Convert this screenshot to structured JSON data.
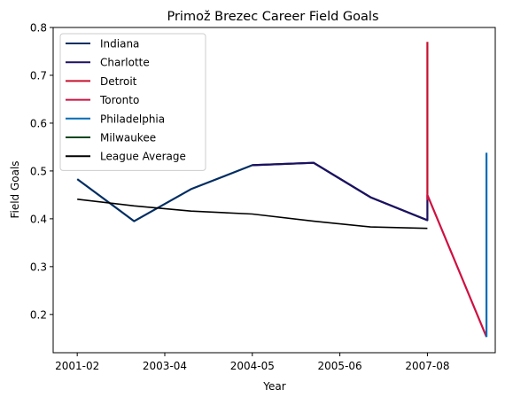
{
  "chart_data": {
    "type": "line",
    "title": "Primož Brezec Career Field Goals",
    "xlabel": "Year",
    "ylabel": "Field Goals",
    "x_ticks": [
      "2001-02",
      "2003-04",
      "2004-05",
      "2005-06",
      "2007-08"
    ],
    "x_tick_pos": [
      0,
      2,
      4,
      6,
      8
    ],
    "x_range": [
      -0.55,
      9.55
    ],
    "y_ticks": [
      "0.2",
      "0.3",
      "0.4",
      "0.5",
      "0.6",
      "0.7",
      "0.8"
    ],
    "y_tick_vals": [
      0.2,
      0.3,
      0.4,
      0.5,
      0.6,
      0.7,
      0.8
    ],
    "ylim": [
      0.12,
      0.8
    ],
    "grid": false,
    "legend_position": "top-left",
    "series": [
      {
        "name": "Indiana",
        "color": "#002D62",
        "points": [
          [
            0,
            0.483
          ],
          [
            1.3,
            0.395
          ],
          [
            2.6,
            0.462
          ],
          [
            4.0,
            0.512
          ],
          [
            5.4,
            0.517
          ],
          [
            6.7,
            0.445
          ],
          [
            8.0,
            0.397
          ]
        ]
      },
      {
        "name": "Charlotte",
        "color": "#1D1160",
        "points": [
          [
            4.0,
            0.512
          ],
          [
            5.4,
            0.517
          ],
          [
            6.7,
            0.445
          ],
          [
            8.0,
            0.397
          ],
          [
            8.0,
            0.44
          ]
        ]
      },
      {
        "name": "Detroit",
        "color": "#C8102E",
        "points": [
          [
            8.0,
            0.77
          ],
          [
            8.0,
            0.44
          ]
        ]
      },
      {
        "name": "Toronto",
        "color": "#CE1141",
        "points": [
          [
            8.0,
            0.44
          ],
          [
            8.0,
            0.45
          ],
          [
            9.35,
            0.153
          ]
        ]
      },
      {
        "name": "Philadelphia",
        "color": "#006BB6",
        "points": [
          [
            9.35,
            0.153
          ],
          [
            9.35,
            0.538
          ]
        ]
      },
      {
        "name": "Milwaukee",
        "color": "#00471B",
        "points": []
      },
      {
        "name": "League Average",
        "color": "#000000",
        "points": [
          [
            0,
            0.441
          ],
          [
            1.3,
            0.427
          ],
          [
            2.6,
            0.416
          ],
          [
            4.0,
            0.41
          ],
          [
            5.4,
            0.395
          ],
          [
            6.7,
            0.383
          ],
          [
            8.0,
            0.38
          ]
        ]
      }
    ]
  }
}
